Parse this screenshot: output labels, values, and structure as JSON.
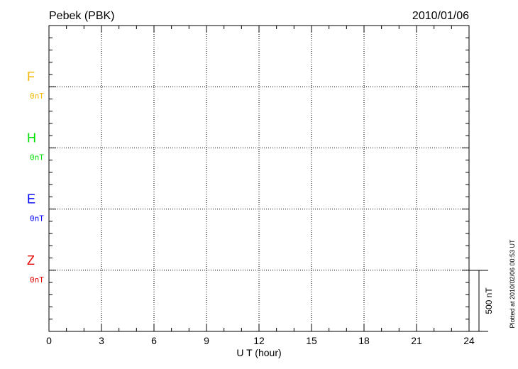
{
  "chart_data": {
    "type": "line",
    "title": "Pebek (PBK)",
    "date": "2010/01/06",
    "xlabel": "U T (hour)",
    "xlim": [
      0,
      24
    ],
    "xticks": [
      "0",
      "3",
      "6",
      "9",
      "12",
      "15",
      "18",
      "21",
      "24"
    ],
    "grid": true,
    "series": [
      {
        "name": "F",
        "baseline_label": "0nT",
        "color": "#f5b800",
        "values": []
      },
      {
        "name": "H",
        "baseline_label": "0nT",
        "color": "#00e000",
        "values": []
      },
      {
        "name": "E",
        "baseline_label": "0nT",
        "color": "#0000ff",
        "values": []
      },
      {
        "name": "Z",
        "baseline_label": "0nT",
        "color": "#e00000",
        "values": []
      }
    ],
    "scale_bar_label": "500 nT",
    "plotted_note": "Plotted at 2010/02/06 00:53 UT"
  }
}
